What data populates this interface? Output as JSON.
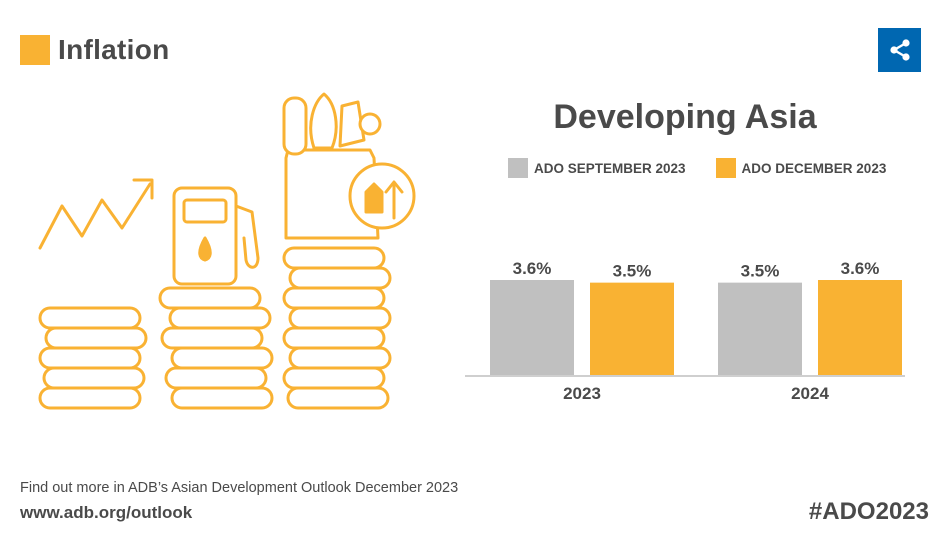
{
  "header": {
    "title": "Inflation",
    "accent_color": "#f9b233"
  },
  "share_button": {
    "icon": "share-icon",
    "color": "#0067b1"
  },
  "chart_data": {
    "type": "bar",
    "title": "Developing Asia",
    "categories": [
      "2023",
      "2024"
    ],
    "series": [
      {
        "name": "ADO SEPTEMBER 2023",
        "values": [
          3.6,
          3.5
        ],
        "labels": [
          "3.6%",
          "3.5%"
        ],
        "color": "#c0c0c0"
      },
      {
        "name": "ADO DECEMBER 2023",
        "values": [
          3.5,
          3.6
        ],
        "labels": [
          "3.5%",
          "3.6%"
        ],
        "color": "#f9b233"
      }
    ],
    "xlabel": "",
    "ylabel": "",
    "ylim": [
      0,
      3.6
    ],
    "legend": "top",
    "grid": false
  },
  "footer": {
    "line1": "Find out more in ADB’s Asian Development Outlook December 2023",
    "url": "www.adb.org/outlook",
    "hashtag": "#ADO2023"
  }
}
